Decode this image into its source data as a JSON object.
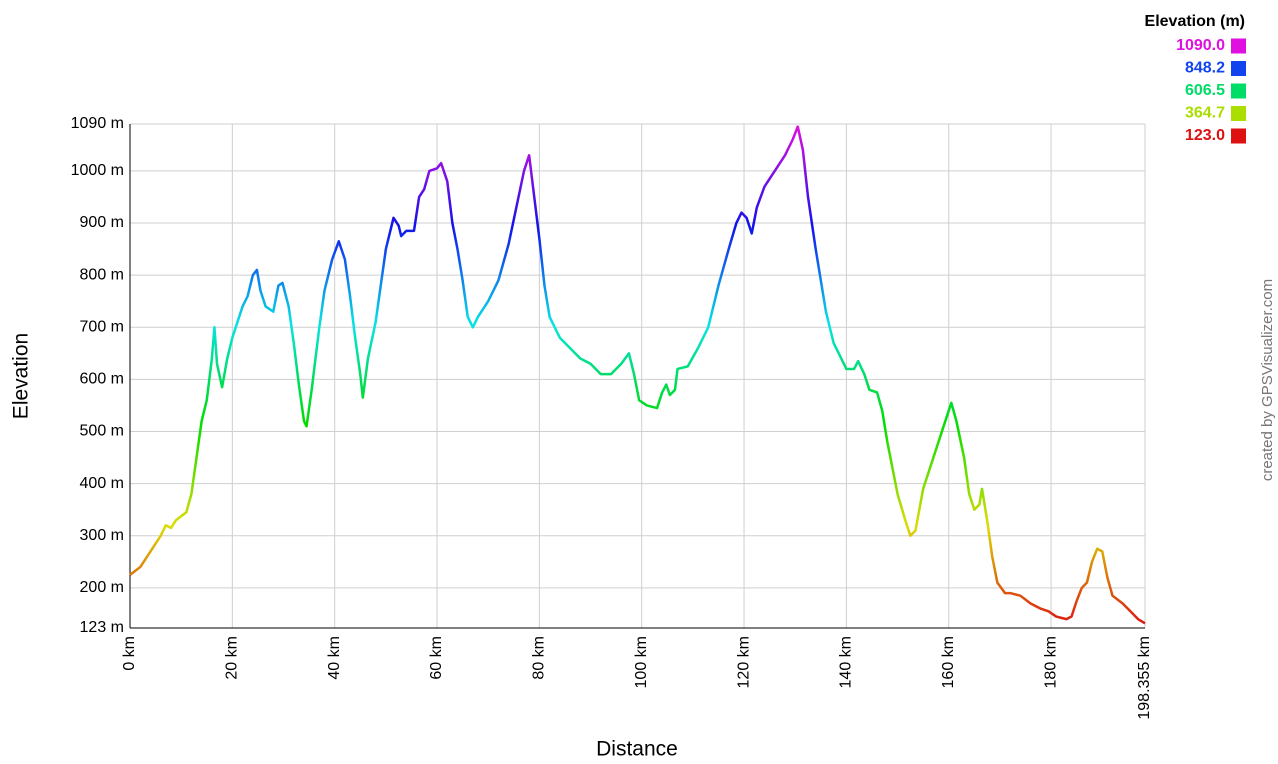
{
  "chart_data": {
    "type": "line",
    "y_label": "Elevation",
    "x_label": "Distance",
    "credit": "created by GPSVisualizer.com",
    "color_scale": {
      "title": "Elevation (m)",
      "values": [
        1090,
        848.2,
        606.5,
        364.7,
        123
      ],
      "value_labels": [
        "1090.0",
        "848.2",
        "606.5",
        "364.7",
        "123.0"
      ],
      "colors": [
        "#e010e0",
        "#1144ee",
        "#00dd66",
        "#aadd00",
        "#dd1111"
      ]
    },
    "x": [
      0,
      2,
      4,
      6,
      7,
      8,
      9,
      11,
      12,
      13,
      14,
      15,
      16,
      16.5,
      17,
      18,
      19,
      20,
      21,
      22,
      23,
      24,
      24.8,
      25.5,
      26.5,
      28,
      29,
      29.8,
      31,
      32,
      33,
      34,
      34.5,
      35.5,
      37,
      38,
      39.5,
      40.8,
      42,
      43,
      44,
      45,
      45.5,
      46.5,
      48,
      49,
      50,
      51.5,
      52.5,
      53,
      54,
      55.5,
      56.5,
      57.5,
      58.5,
      60,
      60.8,
      62,
      63,
      64,
      65,
      66,
      67,
      68,
      70,
      72,
      74,
      75.5,
      77,
      78,
      79,
      80,
      81,
      82,
      83,
      84,
      86,
      88,
      90,
      92,
      94,
      96,
      97.5,
      98.5,
      99.5,
      101,
      103,
      104,
      104.8,
      105.5,
      106.5,
      107,
      109,
      111,
      113,
      115,
      117,
      118.5,
      119.5,
      120.5,
      121.5,
      122.5,
      124,
      126,
      128,
      129.5,
      130.5,
      131.5,
      132.5,
      134,
      136,
      137.5,
      138.5,
      140,
      141.5,
      142.3,
      143.5,
      144.5,
      146,
      147,
      148,
      150,
      151.5,
      152.5,
      153.5,
      155,
      157,
      159,
      160.5,
      161.5,
      163,
      164,
      165,
      166,
      166.5,
      167.5,
      168.5,
      169.5,
      171,
      172,
      174,
      176,
      178,
      179.5,
      181,
      183,
      184,
      185,
      186,
      187,
      188,
      189,
      190,
      191,
      192,
      194,
      196,
      197,
      198.355
    ],
    "series": [
      {
        "name": "Elevation",
        "values": [
          225,
          240,
          270,
          300,
          320,
          315,
          330,
          345,
          380,
          450,
          520,
          560,
          640,
          700,
          630,
          585,
          640,
          680,
          710,
          740,
          760,
          800,
          810,
          770,
          740,
          730,
          780,
          785,
          740,
          670,
          590,
          520,
          510,
          580,
          700,
          770,
          830,
          865,
          830,
          760,
          680,
          610,
          565,
          640,
          710,
          780,
          850,
          910,
          895,
          875,
          885,
          885,
          950,
          965,
          1000,
          1005,
          1015,
          980,
          900,
          850,
          790,
          720,
          700,
          720,
          750,
          790,
          860,
          930,
          1000,
          1030,
          950,
          870,
          780,
          720,
          700,
          680,
          660,
          640,
          630,
          610,
          610,
          630,
          650,
          610,
          560,
          550,
          545,
          575,
          590,
          570,
          580,
          620,
          625,
          660,
          700,
          780,
          850,
          900,
          920,
          910,
          880,
          930,
          970,
          1000,
          1030,
          1060,
          1085,
          1040,
          950,
          850,
          730,
          670,
          650,
          620,
          620,
          635,
          610,
          580,
          575,
          540,
          480,
          380,
          330,
          300,
          310,
          390,
          450,
          510,
          555,
          520,
          450,
          380,
          350,
          360,
          390,
          330,
          260,
          210,
          190,
          190,
          185,
          170,
          160,
          155,
          145,
          140,
          145,
          175,
          200,
          210,
          250,
          275,
          270,
          220,
          185,
          170,
          150,
          140,
          132
        ]
      }
    ],
    "xlim": [
      0,
      198.355
    ],
    "ylim": [
      123,
      1090
    ],
    "xticks": [
      {
        "value": 0,
        "label": "0 km"
      },
      {
        "value": 20,
        "label": "20 km"
      },
      {
        "value": 40,
        "label": "40 km"
      },
      {
        "value": 60,
        "label": "60 km"
      },
      {
        "value": 80,
        "label": "80 km"
      },
      {
        "value": 100,
        "label": "100 km"
      },
      {
        "value": 120,
        "label": "120 km"
      },
      {
        "value": 140,
        "label": "140 km"
      },
      {
        "value": 160,
        "label": "160 km"
      },
      {
        "value": 180,
        "label": "180 km"
      },
      {
        "value": 198.355,
        "label": "198.355 km"
      }
    ],
    "yticks": [
      {
        "value": 123,
        "label": "123 m"
      },
      {
        "value": 200,
        "label": "200 m"
      },
      {
        "value": 300,
        "label": "300 m"
      },
      {
        "value": 400,
        "label": "400 m"
      },
      {
        "value": 500,
        "label": "500 m"
      },
      {
        "value": 600,
        "label": "600 m"
      },
      {
        "value": 700,
        "label": "700 m"
      },
      {
        "value": 800,
        "label": "800 m"
      },
      {
        "value": 900,
        "label": "900 m"
      },
      {
        "value": 1000,
        "label": "1000 m"
      },
      {
        "value": 1090,
        "label": "1090 m"
      }
    ],
    "grid": true
  }
}
